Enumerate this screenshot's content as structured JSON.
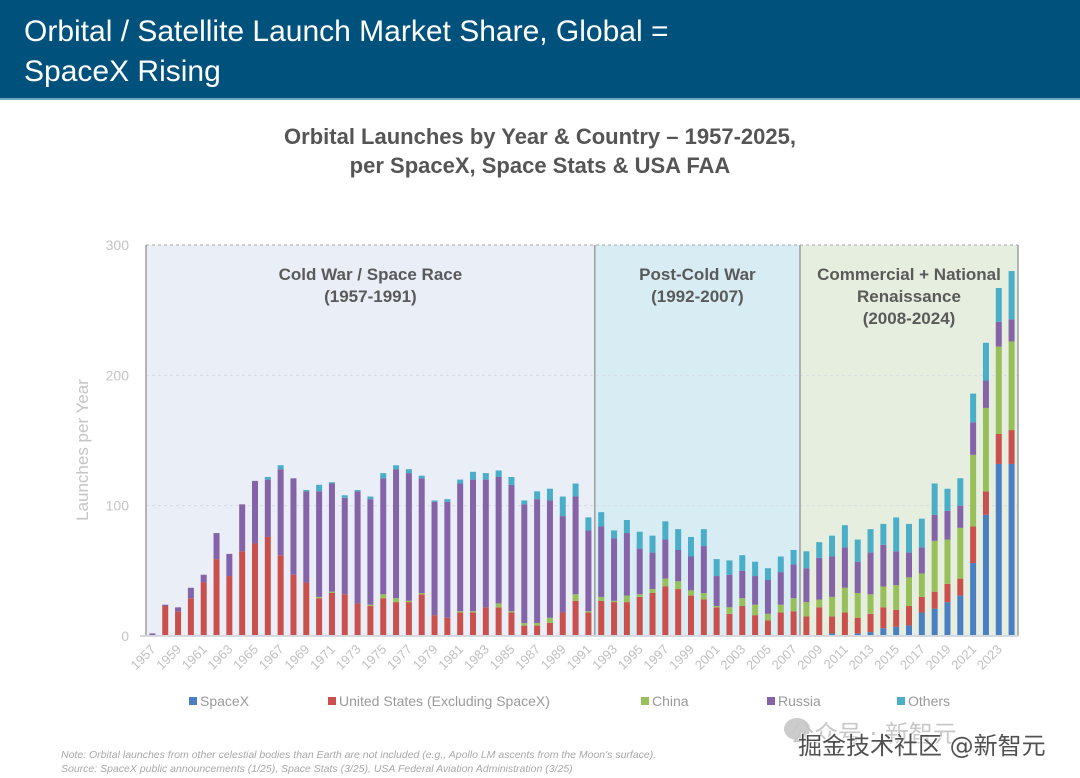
{
  "header": {
    "title_line1": "Orbital / Satellite Launch Market Share, Global =",
    "title_line2": "SpaceX Rising"
  },
  "footnote": {
    "note": "Note: Orbital launches from other celestial bodies than Earth are not included (e.g., Apollo LM ascents from the Moon's surface).",
    "source": "Source: SpaceX public announcements (1/25), Space Stats (3/25), USA Federal Aviation Administration (3/25)"
  },
  "watermark": {
    "ghost_text": "公众号 · 新智元",
    "text": "掘金技术社区 @新智元"
  },
  "chart_data": {
    "type": "bar",
    "stacked": true,
    "title_line1": "Orbital Launches by Year & Country – 1957-2025,",
    "title_line2": "per SpaceX, Space Stats & USA FAA",
    "xlabel": "",
    "ylabel": "Launches per Year",
    "ylim": [
      0,
      300
    ],
    "yticks": [
      0,
      100,
      200,
      300
    ],
    "grid": true,
    "legend_position": "bottom",
    "x": [
      1957,
      1958,
      1959,
      1960,
      1961,
      1962,
      1963,
      1964,
      1965,
      1966,
      1967,
      1968,
      1969,
      1970,
      1971,
      1972,
      1973,
      1974,
      1975,
      1976,
      1977,
      1978,
      1979,
      1980,
      1981,
      1982,
      1983,
      1984,
      1985,
      1986,
      1987,
      1988,
      1989,
      1990,
      1991,
      1992,
      1993,
      1994,
      1995,
      1996,
      1997,
      1998,
      1999,
      2000,
      2001,
      2002,
      2003,
      2004,
      2005,
      2006,
      2007,
      2008,
      2009,
      2010,
      2011,
      2012,
      2013,
      2014,
      2015,
      2016,
      2017,
      2018,
      2019,
      2020,
      2021,
      2022,
      2023,
      2024
    ],
    "xtick_labels": [
      "1957",
      "1959",
      "1961",
      "1963",
      "1965",
      "1967",
      "1969",
      "1971",
      "1973",
      "1975",
      "1977",
      "1979",
      "1981",
      "1983",
      "1985",
      "1987",
      "1989",
      "1991",
      "1993",
      "1995",
      "1997",
      "1999",
      "2001",
      "2003",
      "2005",
      "2007",
      "2009",
      "2011",
      "2013",
      "2015",
      "2017",
      "2019",
      "2021",
      "2023"
    ],
    "series": [
      {
        "name": "SpaceX",
        "color": "#4a7fc1",
        "values": [
          0,
          0,
          0,
          0,
          0,
          0,
          0,
          0,
          0,
          0,
          0,
          0,
          0,
          0,
          0,
          0,
          0,
          0,
          0,
          0,
          0,
          0,
          0,
          0,
          0,
          0,
          0,
          0,
          0,
          0,
          0,
          0,
          0,
          0,
          0,
          0,
          0,
          0,
          0,
          0,
          0,
          0,
          0,
          0,
          0,
          0,
          0,
          0,
          0,
          0,
          0,
          0,
          0,
          2,
          0,
          2,
          3,
          6,
          7,
          8,
          18,
          21,
          26,
          31,
          56,
          93,
          132,
          132
        ]
      },
      {
        "name": "United States (Excluding SpaceX)",
        "color": "#c9504c",
        "values": [
          0,
          23,
          19,
          29,
          41,
          59,
          46,
          65,
          71,
          76,
          62,
          47,
          41,
          29,
          33,
          32,
          25,
          23,
          29,
          26,
          26,
          32,
          16,
          14,
          18,
          18,
          22,
          22,
          18,
          8,
          8,
          10,
          18,
          27,
          18,
          27,
          26,
          26,
          30,
          33,
          38,
          36,
          31,
          28,
          22,
          17,
          23,
          16,
          12,
          18,
          19,
          15,
          22,
          13,
          18,
          12,
          14,
          16,
          13,
          15,
          12,
          13,
          14,
          13,
          28,
          18,
          23,
          26
        ]
      },
      {
        "name": "China",
        "color": "#98bf5a",
        "values": [
          0,
          0,
          0,
          0,
          0,
          0,
          0,
          0,
          0,
          0,
          0,
          0,
          0,
          1,
          1,
          0,
          0,
          1,
          3,
          3,
          1,
          1,
          0,
          0,
          1,
          1,
          0,
          3,
          1,
          2,
          2,
          4,
          0,
          5,
          1,
          3,
          1,
          5,
          2,
          3,
          6,
          6,
          4,
          5,
          1,
          5,
          6,
          8,
          5,
          6,
          10,
          11,
          6,
          15,
          19,
          19,
          15,
          16,
          19,
          22,
          18,
          39,
          34,
          39,
          55,
          64,
          67,
          68
        ]
      },
      {
        "name": "Russia",
        "color": "#8463a8",
        "values": [
          2,
          1,
          3,
          8,
          6,
          20,
          17,
          36,
          48,
          44,
          66,
          74,
          70,
          81,
          83,
          74,
          86,
          81,
          89,
          99,
          98,
          88,
          87,
          89,
          98,
          101,
          98,
          97,
          97,
          91,
          95,
          90,
          74,
          75,
          62,
          54,
          48,
          48,
          35,
          28,
          30,
          24,
          26,
          36,
          23,
          25,
          21,
          22,
          26,
          25,
          26,
          26,
          32,
          31,
          31,
          24,
          32,
          32,
          26,
          19,
          20,
          20,
          22,
          17,
          25,
          21,
          19,
          17
        ]
      },
      {
        "name": "Others",
        "color": "#4aaec9",
        "values": [
          0,
          0,
          0,
          0,
          0,
          0,
          0,
          0,
          0,
          2,
          3,
          0,
          1,
          5,
          1,
          2,
          1,
          2,
          4,
          3,
          3,
          2,
          1,
          2,
          3,
          6,
          5,
          5,
          6,
          3,
          6,
          9,
          15,
          10,
          10,
          11,
          6,
          10,
          13,
          13,
          14,
          16,
          15,
          13,
          13,
          11,
          12,
          11,
          9,
          12,
          11,
          13,
          12,
          16,
          17,
          17,
          18,
          16,
          26,
          22,
          22,
          24,
          17,
          21,
          22,
          29,
          26,
          37
        ]
      }
    ],
    "annotations": [
      {
        "label_line1": "Cold War / Space Race",
        "label_line2": "(1957-1991)",
        "span": [
          1957,
          1991
        ],
        "background": "#e9eef7"
      },
      {
        "label_line1": "Post-Cold War",
        "label_line2": "(1992-2007)",
        "span": [
          1992,
          2007
        ],
        "background": "#d8ecf3"
      },
      {
        "label_line1": "Commercial + National",
        "label_line2": "Renaissance",
        "label_line3": "(2008-2024)",
        "span": [
          2008,
          2024
        ],
        "background": "#e6efdf"
      }
    ]
  }
}
